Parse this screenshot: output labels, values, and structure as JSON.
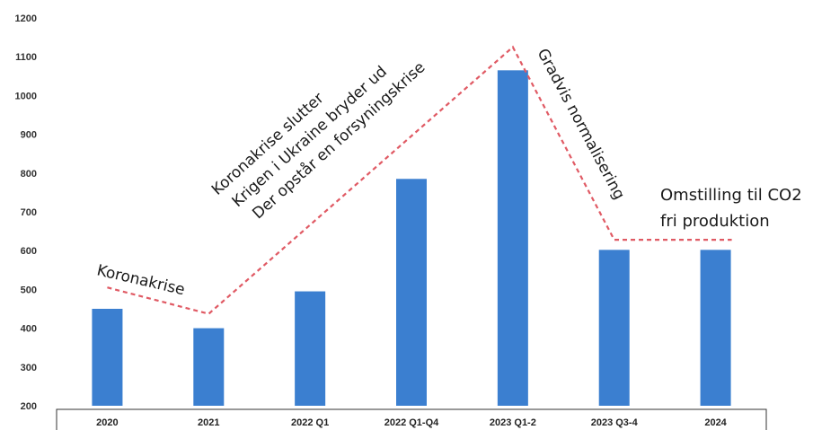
{
  "chart_data": {
    "type": "bar",
    "categories": [
      "2020",
      "2021",
      "2022 Q1",
      "2022 Q1-Q4",
      "2023 Q1-2",
      "2023 Q3-4",
      "2024"
    ],
    "values": [
      450,
      400,
      495,
      785,
      1065,
      602,
      602
    ],
    "ylim": [
      200,
      1200
    ],
    "yticks": [
      200,
      300,
      400,
      500,
      600,
      700,
      800,
      900,
      1000,
      1100,
      1200
    ],
    "title": "",
    "xlabel": "",
    "ylabel": "",
    "bar_color": "#3b7fd0",
    "trend_line": {
      "color": "#e05a64",
      "style": "dashed",
      "points": [
        {
          "x": "2020",
          "y": 505
        },
        {
          "x": "2021",
          "y": 437
        },
        {
          "x": "2023 Q1-2",
          "y": 1125
        },
        {
          "x": "2023 Q3-4",
          "y": 628
        },
        {
          "x": "2024",
          "y": 628
        }
      ]
    },
    "annotations": [
      {
        "id": "koronakrise",
        "lines": [
          "Koronakrise"
        ]
      },
      {
        "id": "phase2",
        "lines": [
          "Koronakrise slutter",
          "Krigen i Ukraine bryder ud",
          "Der opstår en forsyningskrise"
        ]
      },
      {
        "id": "gradvis",
        "lines": [
          "Gradvis normalisering"
        ]
      },
      {
        "id": "omstilling",
        "lines": [
          "Omstilling til CO2",
          "fri produktion"
        ]
      }
    ],
    "grid": false,
    "legend": "none"
  }
}
